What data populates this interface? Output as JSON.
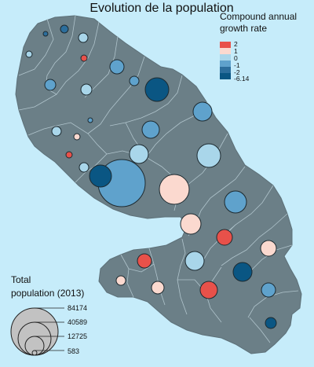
{
  "title": "Evolution de la population",
  "growth_legend": {
    "title_line1": "Compound annual",
    "title_line2": "growth rate",
    "items": [
      {
        "label": "2",
        "color": "#e8514a"
      },
      {
        "label": "1",
        "color": "#fbd9cf"
      },
      {
        "label": "0",
        "color": "#a9d6ea"
      },
      {
        "label": "-1",
        "color": "#5fa2cc"
      },
      {
        "label": "-2",
        "color": "#2c6e9c"
      },
      {
        "label": "-6.14",
        "color": "#0a5683"
      }
    ]
  },
  "size_legend": {
    "title_line1": "Total",
    "title_line2": "population (2013)",
    "values": [
      "84174",
      "40589",
      "12725",
      "583"
    ]
  },
  "colors": {
    "sea": "#c6ecfa",
    "land": "#6b7f87",
    "border": "#b0c4cc"
  }
}
